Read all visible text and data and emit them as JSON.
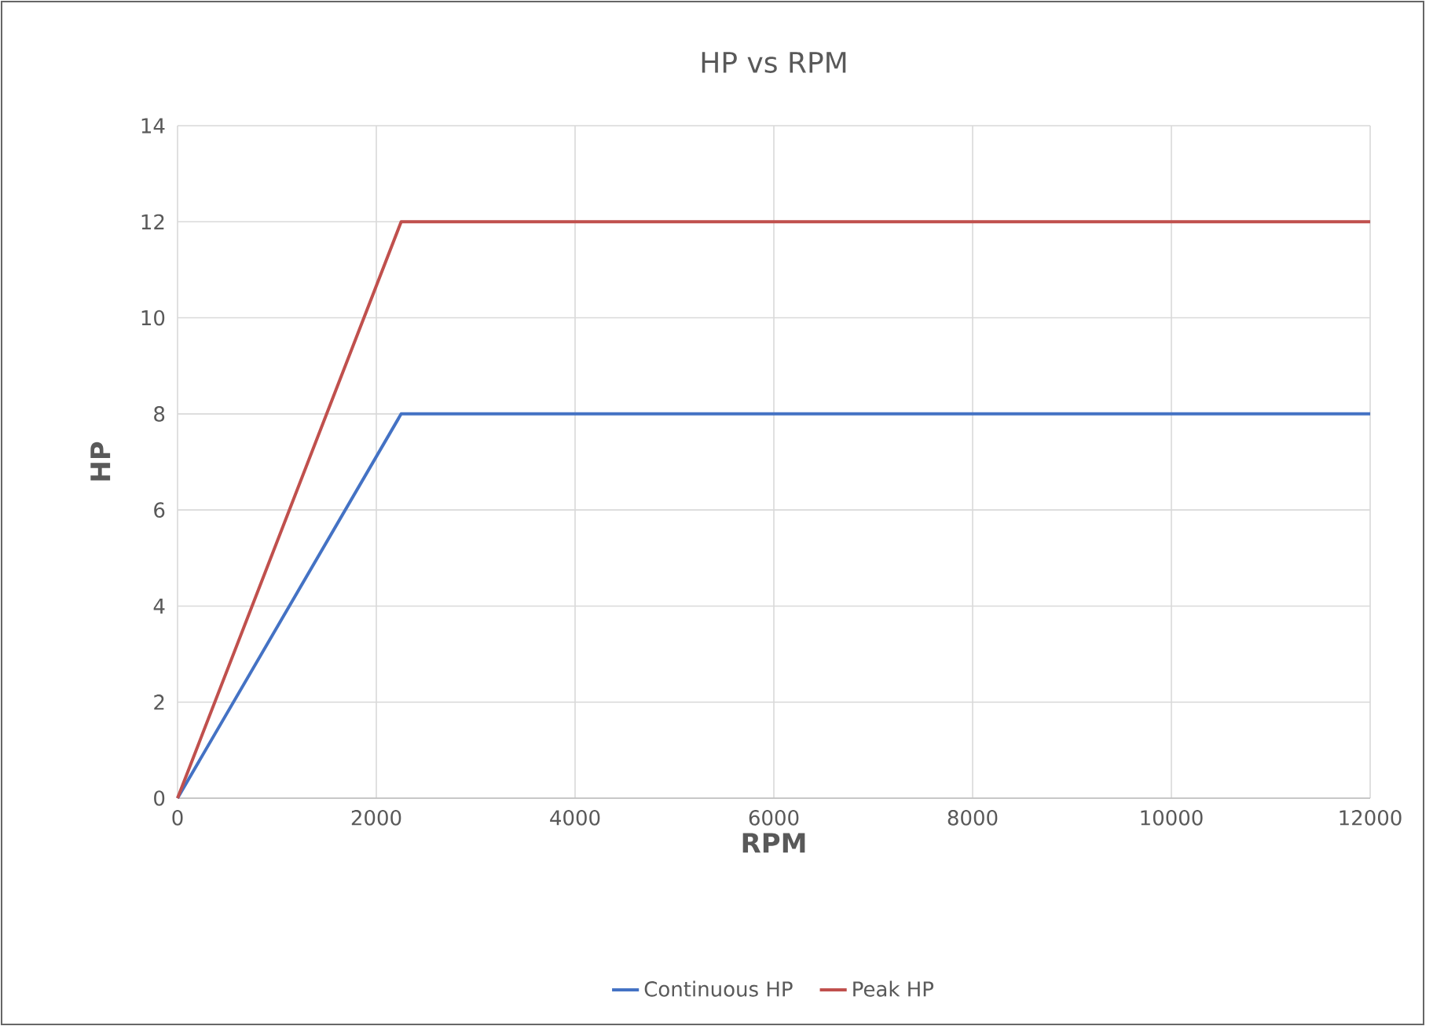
{
  "chart_data": {
    "type": "line",
    "title": "HP vs RPM",
    "xlabel": "RPM",
    "ylabel": "HP",
    "xlim": [
      0,
      12000
    ],
    "xticks": [
      0,
      2000,
      4000,
      6000,
      8000,
      10000,
      12000
    ],
    "ylim": [
      0,
      14
    ],
    "yticks": [
      0,
      2,
      4,
      6,
      8,
      10,
      12,
      14
    ],
    "grid": true,
    "legend": "bottom",
    "marker": "none",
    "line_style": "solid",
    "series": [
      {
        "name": "Continuous HP",
        "color": "#4472c4",
        "x": [
          0,
          2250,
          12000
        ],
        "values": [
          0,
          8,
          8
        ]
      },
      {
        "name": "Peak HP",
        "color": "#c0504d",
        "x": [
          0,
          2250,
          12000
        ],
        "values": [
          0,
          12,
          12
        ]
      }
    ]
  }
}
